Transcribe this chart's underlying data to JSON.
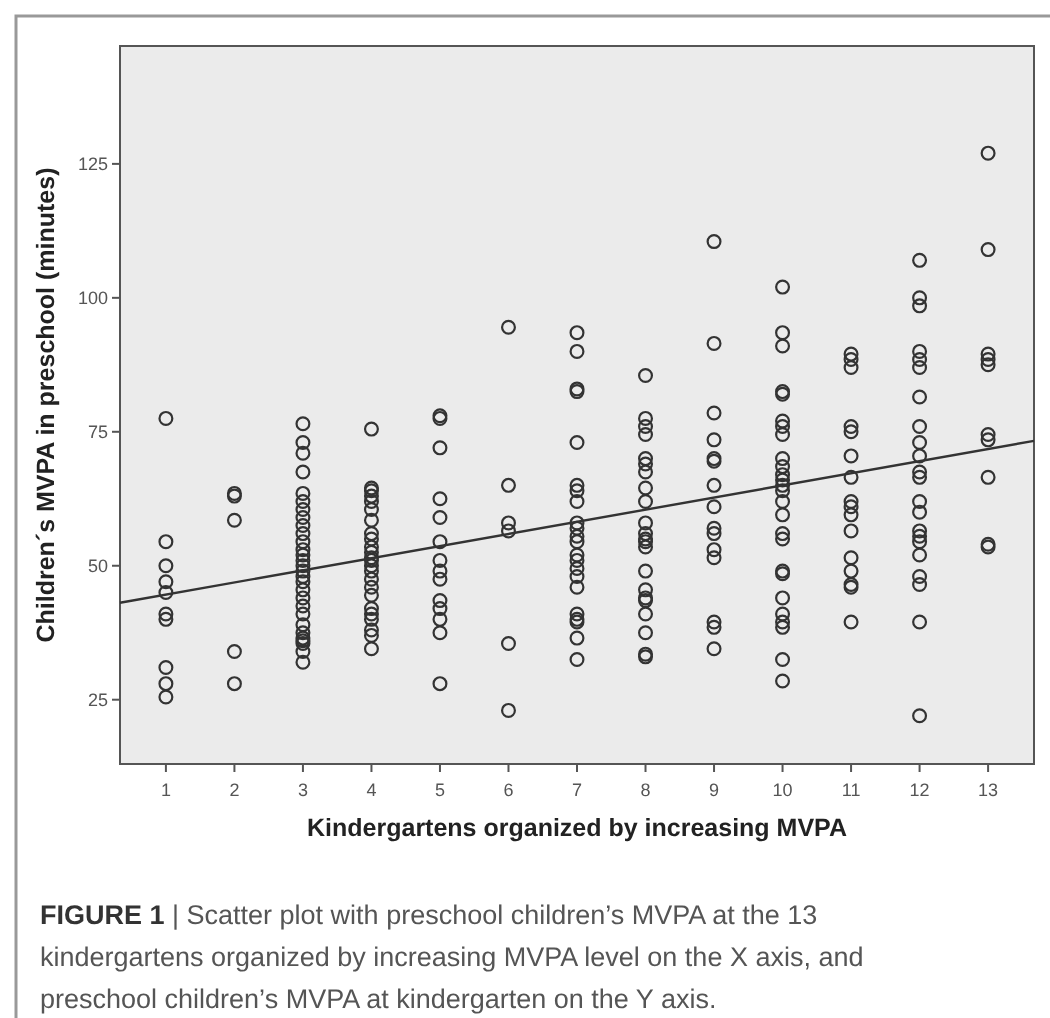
{
  "chart_data": {
    "type": "scatter",
    "xlabel": "Kindergartens organized by increasing MVPA",
    "ylabel": "Children´s MVPA in preschool (minutes)",
    "annotations": [
      "FIGURE 1 | Scatter plot with preschool children’s MVPA at the 13 kindergartens organized by increasing MVPA level on the X axis, and preschool children’s MVPA at kindergarten on the Y axis."
    ],
    "xlim": [
      0.33,
      13.67
    ],
    "xticks": [
      1,
      2,
      3,
      4,
      5,
      6,
      7,
      8,
      9,
      10,
      11,
      12,
      13
    ],
    "ylim": [
      13,
      147
    ],
    "yticks": [
      25,
      50,
      75,
      100,
      125
    ],
    "grid": false,
    "marker": "circle",
    "series": [
      {
        "color": "#333333",
        "x": [
          1,
          1,
          1,
          1,
          1,
          1,
          1,
          1,
          1,
          1,
          2,
          2,
          2,
          2,
          2,
          3,
          3,
          3,
          3,
          3,
          3,
          3,
          3,
          3,
          3,
          3,
          3,
          3,
          3,
          3,
          3,
          3,
          3,
          3,
          3,
          3,
          3,
          3,
          3,
          3,
          3,
          3,
          3,
          3,
          4,
          4,
          4,
          4,
          4,
          4,
          4,
          4,
          4,
          4,
          4,
          4,
          4,
          4,
          4,
          4,
          4,
          4,
          4,
          4,
          4,
          4,
          4,
          4,
          5,
          5,
          5,
          5,
          5,
          5,
          5,
          5,
          5,
          5,
          5,
          5,
          5,
          5,
          6,
          6,
          6,
          6,
          6,
          6,
          7,
          7,
          7,
          7,
          7,
          7,
          7,
          7,
          7,
          7,
          7,
          7,
          7,
          7,
          7,
          7,
          7,
          7,
          7,
          7,
          7,
          7,
          8,
          8,
          8,
          8,
          8,
          8,
          8,
          8,
          8,
          8,
          8,
          8,
          8,
          8,
          8,
          8,
          8,
          8,
          8,
          8,
          8,
          8,
          9,
          9,
          9,
          9,
          9,
          9,
          9,
          9,
          9,
          9,
          9,
          9,
          9,
          9,
          9,
          10,
          10,
          10,
          10,
          10,
          10,
          10,
          10,
          10,
          10,
          10,
          10,
          10,
          10,
          10,
          10,
          10,
          10,
          10,
          10,
          10,
          10,
          10,
          10,
          10,
          10,
          11,
          11,
          11,
          11,
          11,
          11,
          11,
          11,
          11,
          11,
          11,
          11,
          11,
          11,
          11,
          11,
          12,
          12,
          12,
          12,
          12,
          12,
          12,
          12,
          12,
          12,
          12,
          12,
          12,
          12,
          12,
          12,
          12,
          12,
          12,
          12,
          12,
          12,
          13,
          13,
          13,
          13,
          13,
          13,
          13,
          13,
          13,
          13
        ],
        "values": [
          77.5,
          54.5,
          50,
          47,
          45,
          41,
          40,
          31,
          28,
          25.5,
          63.5,
          63,
          58.5,
          34,
          28,
          76.5,
          73,
          71,
          67.5,
          63.5,
          62,
          60.5,
          59,
          57.5,
          56,
          54.5,
          53,
          52,
          51,
          50,
          49,
          48,
          47,
          45.5,
          44,
          42.5,
          41,
          39,
          37.5,
          36.5,
          36,
          35.5,
          34,
          32,
          75.5,
          64.5,
          64,
          63,
          62,
          60.5,
          58.5,
          56,
          55,
          53.5,
          52.5,
          51.5,
          51,
          50,
          49,
          47.5,
          46,
          44.5,
          42,
          41,
          40,
          38,
          37,
          34.5,
          78,
          77.5,
          72,
          62.5,
          59,
          54.5,
          51,
          49,
          47.5,
          43.5,
          42,
          40,
          37.5,
          28,
          94.5,
          65,
          58,
          56.5,
          35.5,
          23,
          93.5,
          90,
          83,
          82.5,
          73,
          65,
          64,
          62,
          58,
          57,
          55.5,
          54.5,
          52,
          51,
          49.5,
          48,
          46,
          41,
          40,
          39.5,
          36.5,
          32.5,
          85.5,
          77.5,
          76,
          74.5,
          70,
          69,
          67.5,
          64.5,
          62,
          58,
          56,
          55,
          54.5,
          53.5,
          49,
          45.5,
          44,
          43.5,
          41,
          37.5,
          33.5,
          33,
          110.5,
          91.5,
          78.5,
          73.5,
          70,
          69.5,
          65,
          61,
          57,
          56,
          53,
          51.5,
          39.5,
          38.5,
          34.5,
          102,
          93.5,
          91,
          82.5,
          82,
          77,
          76,
          74.5,
          70,
          68.5,
          67,
          66,
          65,
          64,
          62,
          59.5,
          56,
          55,
          49,
          48.5,
          44,
          41,
          39.5,
          38.5,
          32.5,
          28.5,
          89.5,
          88.5,
          87,
          76,
          75,
          70.5,
          66.5,
          62,
          61,
          59.5,
          56.5,
          51.5,
          49,
          46.5,
          46,
          39.5,
          107,
          100,
          98.5,
          90,
          88.5,
          87,
          81.5,
          76,
          73,
          70.5,
          67.5,
          66.5,
          62,
          60,
          56.5,
          55.5,
          54.5,
          52,
          48,
          46.5,
          39.5,
          22,
          127,
          109,
          89.5,
          88.5,
          87.5,
          74.5,
          73.5,
          66.5,
          54,
          53.5
        ]
      },
      {
        "type": "line",
        "color": "#333333",
        "marker": "none",
        "line_style": "solid",
        "x": [
          0.33,
          13.67
        ],
        "values": [
          43.1,
          73.3
        ]
      }
    ]
  }
}
